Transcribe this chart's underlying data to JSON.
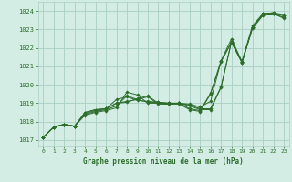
{
  "title": "Graphe pression niveau de la mer (hPa)",
  "background_color": "#d4ede4",
  "grid_color": "#aacfc4",
  "line_color": "#2d6e2d",
  "marker_color": "#2d6e2d",
  "xlim": [
    -0.5,
    23.5
  ],
  "ylim": [
    1016.7,
    1024.5
  ],
  "yticks": [
    1017,
    1018,
    1019,
    1020,
    1021,
    1022,
    1023,
    1024
  ],
  "xticks": [
    0,
    1,
    2,
    3,
    4,
    5,
    6,
    7,
    8,
    9,
    10,
    11,
    12,
    13,
    14,
    15,
    16,
    17,
    18,
    19,
    20,
    21,
    22,
    23
  ],
  "series": [
    [
      1017.15,
      1017.7,
      1017.85,
      1017.75,
      1018.35,
      1018.5,
      1018.6,
      1018.75,
      1019.6,
      1019.45,
      1019.0,
      1019.0,
      1018.95,
      1019.0,
      1018.85,
      1018.65,
      1018.65,
      1019.85,
      1022.35,
      1021.25,
      1023.1,
      1023.85,
      1023.85,
      1023.75
    ],
    [
      1017.15,
      1017.7,
      1017.85,
      1017.75,
      1018.4,
      1018.55,
      1018.65,
      1018.85,
      1019.4,
      1019.2,
      1019.05,
      1019.05,
      1019.0,
      1019.0,
      1018.9,
      1018.7,
      1018.7,
      1019.9,
      1022.35,
      1021.25,
      1023.1,
      1023.85,
      1023.9,
      1023.8
    ],
    [
      1017.15,
      1017.7,
      1017.85,
      1017.75,
      1018.45,
      1018.6,
      1018.7,
      1019.2,
      1019.35,
      1019.15,
      1019.1,
      1019.05,
      1019.0,
      1019.0,
      1018.95,
      1018.8,
      1019.1,
      1021.3,
      1022.5,
      1021.25,
      1023.2,
      1023.85,
      1023.9,
      1023.75
    ],
    [
      1017.15,
      1017.7,
      1017.85,
      1017.75,
      1018.5,
      1018.65,
      1018.7,
      1019.0,
      1019.05,
      1019.25,
      1019.4,
      1019.0,
      1019.0,
      1019.0,
      1018.7,
      1018.6,
      1019.55,
      1021.3,
      1022.3,
      1021.2,
      1023.1,
      1023.8,
      1023.85,
      1023.65
    ],
    [
      1017.15,
      1017.7,
      1017.85,
      1017.75,
      1018.5,
      1018.65,
      1018.7,
      1019.0,
      1019.1,
      1019.2,
      1019.35,
      1018.95,
      1018.95,
      1018.95,
      1018.65,
      1018.55,
      1019.5,
      1021.25,
      1022.3,
      1021.2,
      1023.05,
      1023.75,
      1023.85,
      1023.6
    ]
  ]
}
